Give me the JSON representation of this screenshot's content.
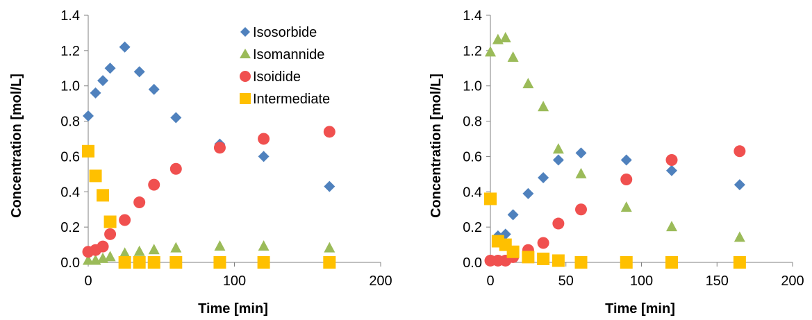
{
  "chart_data": [
    {
      "type": "scatter",
      "title": "",
      "xlabel": "Time [min]",
      "ylabel": "Concentration [mol/L]",
      "xlim": [
        0,
        200
      ],
      "ylim": [
        0,
        1.4
      ],
      "xticks": [
        0,
        100,
        200
      ],
      "xtick_labels": [
        "0",
        "100",
        "200"
      ],
      "yticks": [
        0,
        0.2,
        0.4,
        0.6,
        0.8,
        1.0,
        1.2,
        1.4
      ],
      "ytick_labels": [
        "0.0",
        "0.2",
        "0.4",
        "0.6",
        "0.8",
        "1.0",
        "1.2",
        "1.4"
      ],
      "grid": false,
      "legend_position": "top-right",
      "series": [
        {
          "name": "Isosorbide",
          "marker": "diamond",
          "color": "#4f81bd",
          "points": [
            [
              0,
              0.83
            ],
            [
              5,
              0.96
            ],
            [
              10,
              1.03
            ],
            [
              15,
              1.1
            ],
            [
              25,
              1.22
            ],
            [
              35,
              1.08
            ],
            [
              45,
              0.98
            ],
            [
              60,
              0.82
            ],
            [
              90,
              0.67
            ],
            [
              120,
              0.6
            ],
            [
              165,
              0.43
            ]
          ]
        },
        {
          "name": "Isomannide",
          "marker": "triangle",
          "color": "#9bbb59",
          "points": [
            [
              0,
              0.01
            ],
            [
              5,
              0.01
            ],
            [
              10,
              0.02
            ],
            [
              15,
              0.03
            ],
            [
              25,
              0.05
            ],
            [
              35,
              0.06
            ],
            [
              45,
              0.07
            ],
            [
              60,
              0.08
            ],
            [
              90,
              0.09
            ],
            [
              120,
              0.09
            ],
            [
              165,
              0.08
            ]
          ]
        },
        {
          "name": "Isoidide",
          "marker": "circle",
          "color": "#f0504f",
          "points": [
            [
              0,
              0.06
            ],
            [
              5,
              0.07
            ],
            [
              10,
              0.09
            ],
            [
              15,
              0.16
            ],
            [
              25,
              0.24
            ],
            [
              35,
              0.34
            ],
            [
              45,
              0.44
            ],
            [
              60,
              0.53
            ],
            [
              90,
              0.65
            ],
            [
              120,
              0.7
            ],
            [
              165,
              0.74
            ]
          ]
        },
        {
          "name": "Intermediate",
          "marker": "square",
          "color": "#ffc000",
          "points": [
            [
              0,
              0.63
            ],
            [
              5,
              0.49
            ],
            [
              10,
              0.38
            ],
            [
              15,
              0.23
            ],
            [
              25,
              0.0
            ],
            [
              35,
              0.0
            ],
            [
              45,
              0.0
            ],
            [
              60,
              0.0
            ],
            [
              90,
              0.0
            ],
            [
              120,
              0.0
            ],
            [
              165,
              0.0
            ]
          ]
        }
      ]
    },
    {
      "type": "scatter",
      "title": "",
      "xlabel": "Time [min]",
      "ylabel": "Concentration [mol/L]",
      "xlim": [
        0,
        200
      ],
      "ylim": [
        0,
        1.4
      ],
      "xticks": [
        0,
        50,
        100,
        150,
        200
      ],
      "xtick_labels": [
        "0",
        "50",
        "100",
        "150",
        "200"
      ],
      "yticks": [
        0,
        0.2,
        0.4,
        0.6,
        0.8,
        1.0,
        1.2,
        1.4
      ],
      "ytick_labels": [
        "0.0",
        "0.2",
        "0.4",
        "0.6",
        "0.8",
        "1.0",
        "1.2",
        "1.4"
      ],
      "grid": false,
      "series": [
        {
          "name": "Isosorbide",
          "marker": "diamond",
          "color": "#4f81bd",
          "points": [
            [
              5,
              0.15
            ],
            [
              10,
              0.16
            ],
            [
              15,
              0.27
            ],
            [
              25,
              0.39
            ],
            [
              35,
              0.48
            ],
            [
              45,
              0.58
            ],
            [
              60,
              0.62
            ],
            [
              90,
              0.58
            ],
            [
              120,
              0.52
            ],
            [
              165,
              0.44
            ]
          ]
        },
        {
          "name": "Isomannide",
          "marker": "triangle",
          "color": "#9bbb59",
          "points": [
            [
              0,
              1.19
            ],
            [
              5,
              1.26
            ],
            [
              10,
              1.27
            ],
            [
              15,
              1.16
            ],
            [
              25,
              1.01
            ],
            [
              35,
              0.88
            ],
            [
              45,
              0.64
            ],
            [
              60,
              0.5
            ],
            [
              90,
              0.31
            ],
            [
              120,
              0.2
            ],
            [
              165,
              0.14
            ]
          ]
        },
        {
          "name": "Isoidide",
          "marker": "circle",
          "color": "#f0504f",
          "points": [
            [
              0,
              0.01
            ],
            [
              5,
              0.01
            ],
            [
              10,
              0.01
            ],
            [
              15,
              0.03
            ],
            [
              25,
              0.07
            ],
            [
              35,
              0.11
            ],
            [
              45,
              0.22
            ],
            [
              60,
              0.3
            ],
            [
              90,
              0.47
            ],
            [
              120,
              0.58
            ],
            [
              165,
              0.63
            ]
          ]
        },
        {
          "name": "Intermediate",
          "marker": "square",
          "color": "#ffc000",
          "points": [
            [
              0,
              0.36
            ],
            [
              5,
              0.12
            ],
            [
              10,
              0.1
            ],
            [
              15,
              0.06
            ],
            [
              25,
              0.03
            ],
            [
              35,
              0.02
            ],
            [
              45,
              0.01
            ],
            [
              60,
              0.0
            ],
            [
              90,
              0.0
            ],
            [
              120,
              0.0
            ],
            [
              165,
              0.0
            ]
          ]
        }
      ]
    }
  ]
}
